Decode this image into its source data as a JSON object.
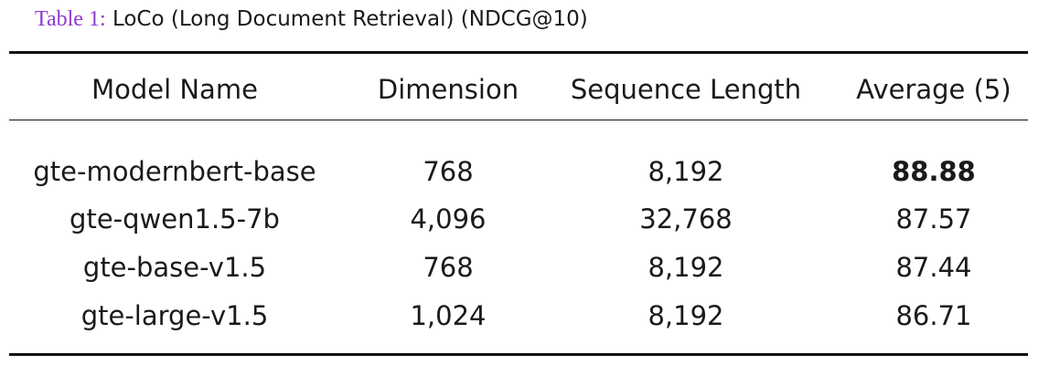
{
  "caption": {
    "label": "Table 1:",
    "text": "LoCo (Long Document Retrieval) (NDCG@10)"
  },
  "table": {
    "header": [
      "Model Name",
      "Dimension",
      "Sequence Length",
      "Average (5)"
    ],
    "rows": [
      [
        "gte-modernbert-base",
        "768",
        "8,192",
        "88.88"
      ],
      [
        "gte-qwen1.5-7b",
        "4,096",
        "32,768",
        "87.57"
      ],
      [
        "gte-base-v1.5",
        "768",
        "8,192",
        "87.44"
      ],
      [
        "gte-large-v1.5",
        "1,024",
        "8,192",
        "86.71"
      ]
    ]
  }
}
